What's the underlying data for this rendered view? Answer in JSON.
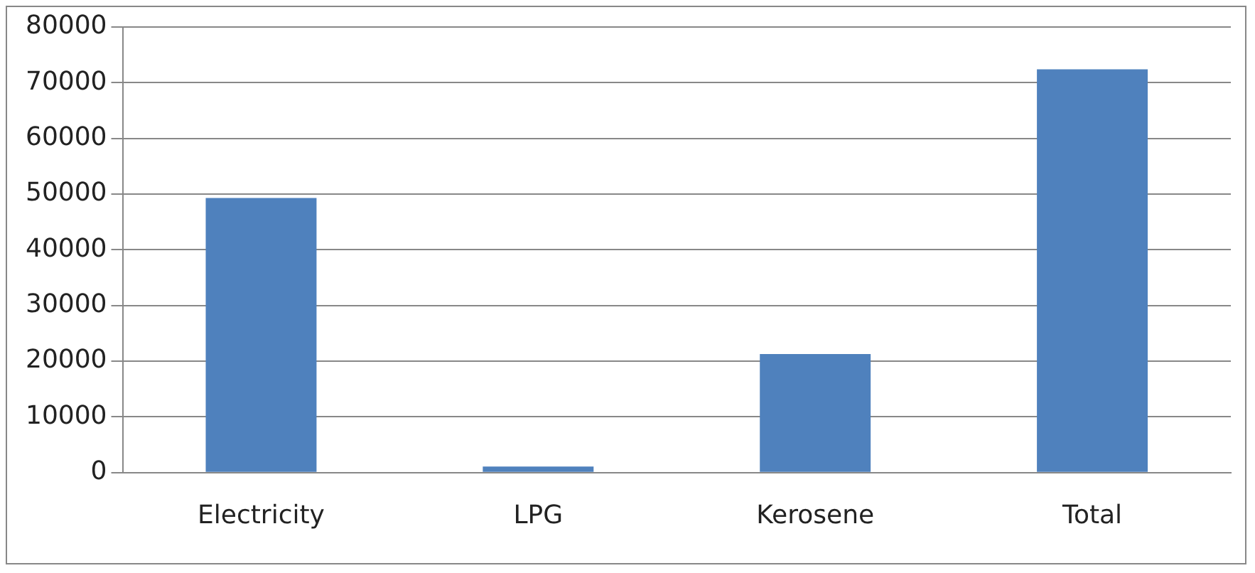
{
  "chart_data": {
    "type": "bar",
    "categories": [
      "Electricity",
      "LPG",
      "Kerosene",
      "Total"
    ],
    "values": [
      49300,
      1100,
      21300,
      72400
    ],
    "color": "#4f81bd",
    "ylim": [
      0,
      80000
    ],
    "yticks": [
      0,
      10000,
      20000,
      30000,
      40000,
      50000,
      60000,
      70000,
      80000
    ],
    "grid": "y"
  }
}
